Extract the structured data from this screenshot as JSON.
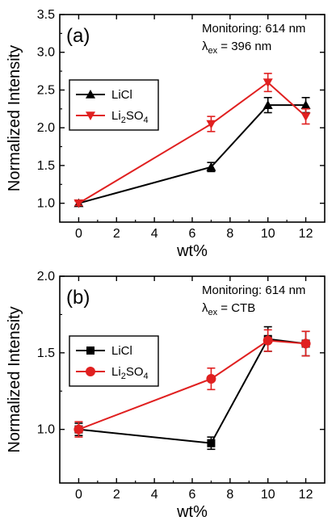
{
  "chart_data": [
    {
      "type": "line",
      "panel_label": "(a)",
      "xlabel": "wt%",
      "ylabel": "Normalized Intensity",
      "xlim": [
        -1,
        13
      ],
      "ylim": [
        0.75,
        3.5
      ],
      "xticks": [
        0,
        2,
        4,
        6,
        8,
        10,
        12
      ],
      "yticks": [
        1.0,
        1.5,
        2.0,
        2.5,
        3.0,
        3.5
      ],
      "ytick_labels": [
        "1.0",
        "1.5",
        "2.0",
        "2.5",
        "3.0",
        "3.5"
      ],
      "annotations": {
        "monitoring": "Monitoring: 614 nm",
        "lambda": "λ",
        "lambda_sub": "ex",
        "excitation": " = 396 nm"
      },
      "legend_position": "upper-left",
      "series": [
        {
          "name": "LiCl",
          "name_parts": {
            "base": "LiCl",
            "sub": "",
            "tail": ""
          },
          "color": "#000000",
          "marker": "triangle-up",
          "x": [
            0,
            7,
            10,
            12
          ],
          "y": [
            1.0,
            1.48,
            2.3,
            2.3
          ],
          "err": [
            0.03,
            0.06,
            0.1,
            0.1
          ]
        },
        {
          "name": "Li2SO4",
          "name_parts": {
            "base": "Li",
            "sub": "2",
            "tail": "SO",
            "sub2": "4"
          },
          "color": "#e02020",
          "marker": "triangle-down",
          "x": [
            0,
            7,
            10,
            12
          ],
          "y": [
            1.0,
            2.05,
            2.6,
            2.15
          ],
          "err": [
            0.03,
            0.1,
            0.12,
            0.1
          ]
        }
      ]
    },
    {
      "type": "line",
      "panel_label": "(b)",
      "xlabel": "wt%",
      "ylabel": "Normalized Intensity",
      "xlim": [
        -1,
        13
      ],
      "ylim": [
        0.65,
        2.0
      ],
      "xticks": [
        0,
        2,
        4,
        6,
        8,
        10,
        12
      ],
      "yticks": [
        1.0,
        1.5,
        2.0
      ],
      "ytick_labels": [
        "1.0",
        "1.5",
        "2.0"
      ],
      "annotations": {
        "monitoring": "Monitoring: 614 nm",
        "lambda": "λ",
        "lambda_sub": "ex",
        "excitation": " = CTB"
      },
      "legend_position": "upper-left",
      "series": [
        {
          "name": "LiCl",
          "name_parts": {
            "base": "LiCl",
            "sub": "",
            "tail": ""
          },
          "color": "#000000",
          "marker": "square",
          "x": [
            0,
            7,
            10,
            12
          ],
          "y": [
            1.0,
            0.91,
            1.59,
            1.56
          ],
          "err": [
            0.04,
            0.04,
            0.08,
            0.08
          ]
        },
        {
          "name": "Li2SO4",
          "name_parts": {
            "base": "Li",
            "sub": "2",
            "tail": "SO",
            "sub2": "4"
          },
          "color": "#e02020",
          "marker": "circle",
          "x": [
            0,
            7,
            10,
            12
          ],
          "y": [
            1.0,
            1.33,
            1.58,
            1.56
          ],
          "err": [
            0.05,
            0.07,
            0.07,
            0.08
          ]
        }
      ]
    }
  ]
}
